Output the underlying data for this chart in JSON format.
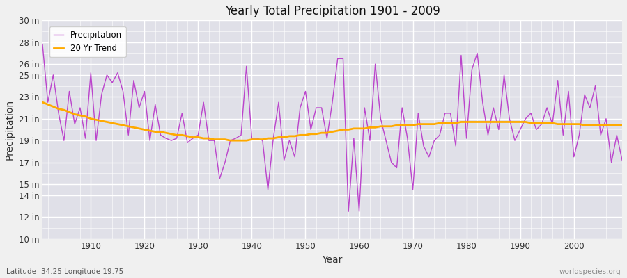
{
  "title": "Yearly Total Precipitation 1901 - 2009",
  "xlabel": "Year",
  "ylabel": "Precipitation",
  "background_color": "#f0f0f0",
  "plot_bg_color": "#e0e0e8",
  "precipitation_color": "#bb44cc",
  "trend_color": "#ffaa00",
  "footer_left": "Latitude -34.25 Longitude 19.75",
  "footer_right": "worldspecies.org",
  "ylim": [
    10,
    30
  ],
  "yticks": [
    10,
    12,
    14,
    15,
    17,
    19,
    21,
    23,
    25,
    26,
    28,
    30
  ],
  "xlim": [
    1901,
    2009
  ],
  "xticks": [
    1910,
    1920,
    1930,
    1940,
    1950,
    1960,
    1970,
    1980,
    1990,
    2000
  ],
  "years": [
    1901,
    1902,
    1903,
    1904,
    1905,
    1906,
    1907,
    1908,
    1909,
    1910,
    1911,
    1912,
    1913,
    1914,
    1915,
    1916,
    1917,
    1918,
    1919,
    1920,
    1921,
    1922,
    1923,
    1924,
    1925,
    1926,
    1927,
    1928,
    1929,
    1930,
    1931,
    1932,
    1933,
    1934,
    1935,
    1936,
    1937,
    1938,
    1939,
    1940,
    1941,
    1942,
    1943,
    1944,
    1945,
    1946,
    1947,
    1948,
    1949,
    1950,
    1951,
    1952,
    1953,
    1954,
    1955,
    1956,
    1957,
    1958,
    1959,
    1960,
    1961,
    1962,
    1963,
    1964,
    1965,
    1966,
    1967,
    1968,
    1969,
    1970,
    1971,
    1972,
    1973,
    1974,
    1975,
    1976,
    1977,
    1978,
    1979,
    1980,
    1981,
    1982,
    1983,
    1984,
    1985,
    1986,
    1987,
    1988,
    1989,
    1990,
    1991,
    1992,
    1993,
    1994,
    1995,
    1996,
    1997,
    1998,
    1999,
    2000,
    2001,
    2002,
    2003,
    2004,
    2005,
    2006,
    2007,
    2008,
    2009
  ],
  "precip": [
    27.8,
    22.5,
    25.0,
    21.5,
    19.0,
    23.5,
    20.5,
    22.0,
    19.2,
    25.2,
    19.0,
    23.2,
    25.0,
    24.3,
    25.2,
    23.5,
    19.5,
    24.5,
    22.0,
    23.5,
    19.0,
    22.3,
    19.5,
    19.2,
    19.0,
    19.2,
    21.5,
    18.8,
    19.2,
    19.5,
    22.5,
    19.0,
    19.0,
    15.5,
    17.0,
    19.0,
    19.2,
    19.5,
    25.8,
    19.2,
    19.2,
    19.0,
    14.5,
    19.2,
    22.5,
    17.2,
    19.0,
    17.5,
    22.0,
    23.5,
    20.0,
    22.0,
    22.0,
    19.2,
    22.5,
    26.5,
    26.5,
    12.5,
    19.2,
    12.5,
    22.0,
    19.0,
    26.0,
    21.0,
    19.0,
    17.0,
    16.5,
    22.0,
    19.2,
    14.5,
    21.5,
    18.5,
    17.5,
    19.0,
    19.5,
    21.5,
    21.5,
    18.5,
    26.8,
    19.2,
    25.5,
    27.0,
    22.5,
    19.5,
    22.0,
    20.0,
    25.0,
    21.0,
    19.0,
    20.0,
    21.0,
    21.5,
    20.0,
    20.5,
    22.0,
    20.5,
    24.5,
    19.5,
    23.5,
    17.5,
    19.5,
    23.2,
    22.0,
    24.0,
    19.5,
    21.0,
    17.0,
    19.5,
    17.2
  ],
  "trend": [
    22.5,
    22.3,
    22.1,
    21.9,
    21.8,
    21.6,
    21.4,
    21.3,
    21.2,
    21.0,
    20.9,
    20.8,
    20.7,
    20.6,
    20.5,
    20.4,
    20.3,
    20.2,
    20.1,
    20.0,
    19.9,
    19.8,
    19.8,
    19.7,
    19.6,
    19.5,
    19.5,
    19.4,
    19.3,
    19.3,
    19.2,
    19.2,
    19.1,
    19.1,
    19.1,
    19.0,
    19.0,
    19.0,
    19.0,
    19.1,
    19.1,
    19.1,
    19.2,
    19.2,
    19.3,
    19.3,
    19.4,
    19.4,
    19.5,
    19.5,
    19.6,
    19.6,
    19.7,
    19.7,
    19.8,
    19.9,
    20.0,
    20.0,
    20.1,
    20.1,
    20.1,
    20.2,
    20.2,
    20.3,
    20.3,
    20.3,
    20.4,
    20.4,
    20.4,
    20.4,
    20.5,
    20.5,
    20.5,
    20.5,
    20.6,
    20.6,
    20.6,
    20.6,
    20.7,
    20.7,
    20.7,
    20.7,
    20.7,
    20.7,
    20.7,
    20.7,
    20.7,
    20.7,
    20.7,
    20.7,
    20.7,
    20.6,
    20.6,
    20.6,
    20.6,
    20.6,
    20.5,
    20.5,
    20.5,
    20.5,
    20.5,
    20.4,
    20.4,
    20.4,
    20.4,
    20.4,
    20.4,
    20.4,
    20.4
  ]
}
